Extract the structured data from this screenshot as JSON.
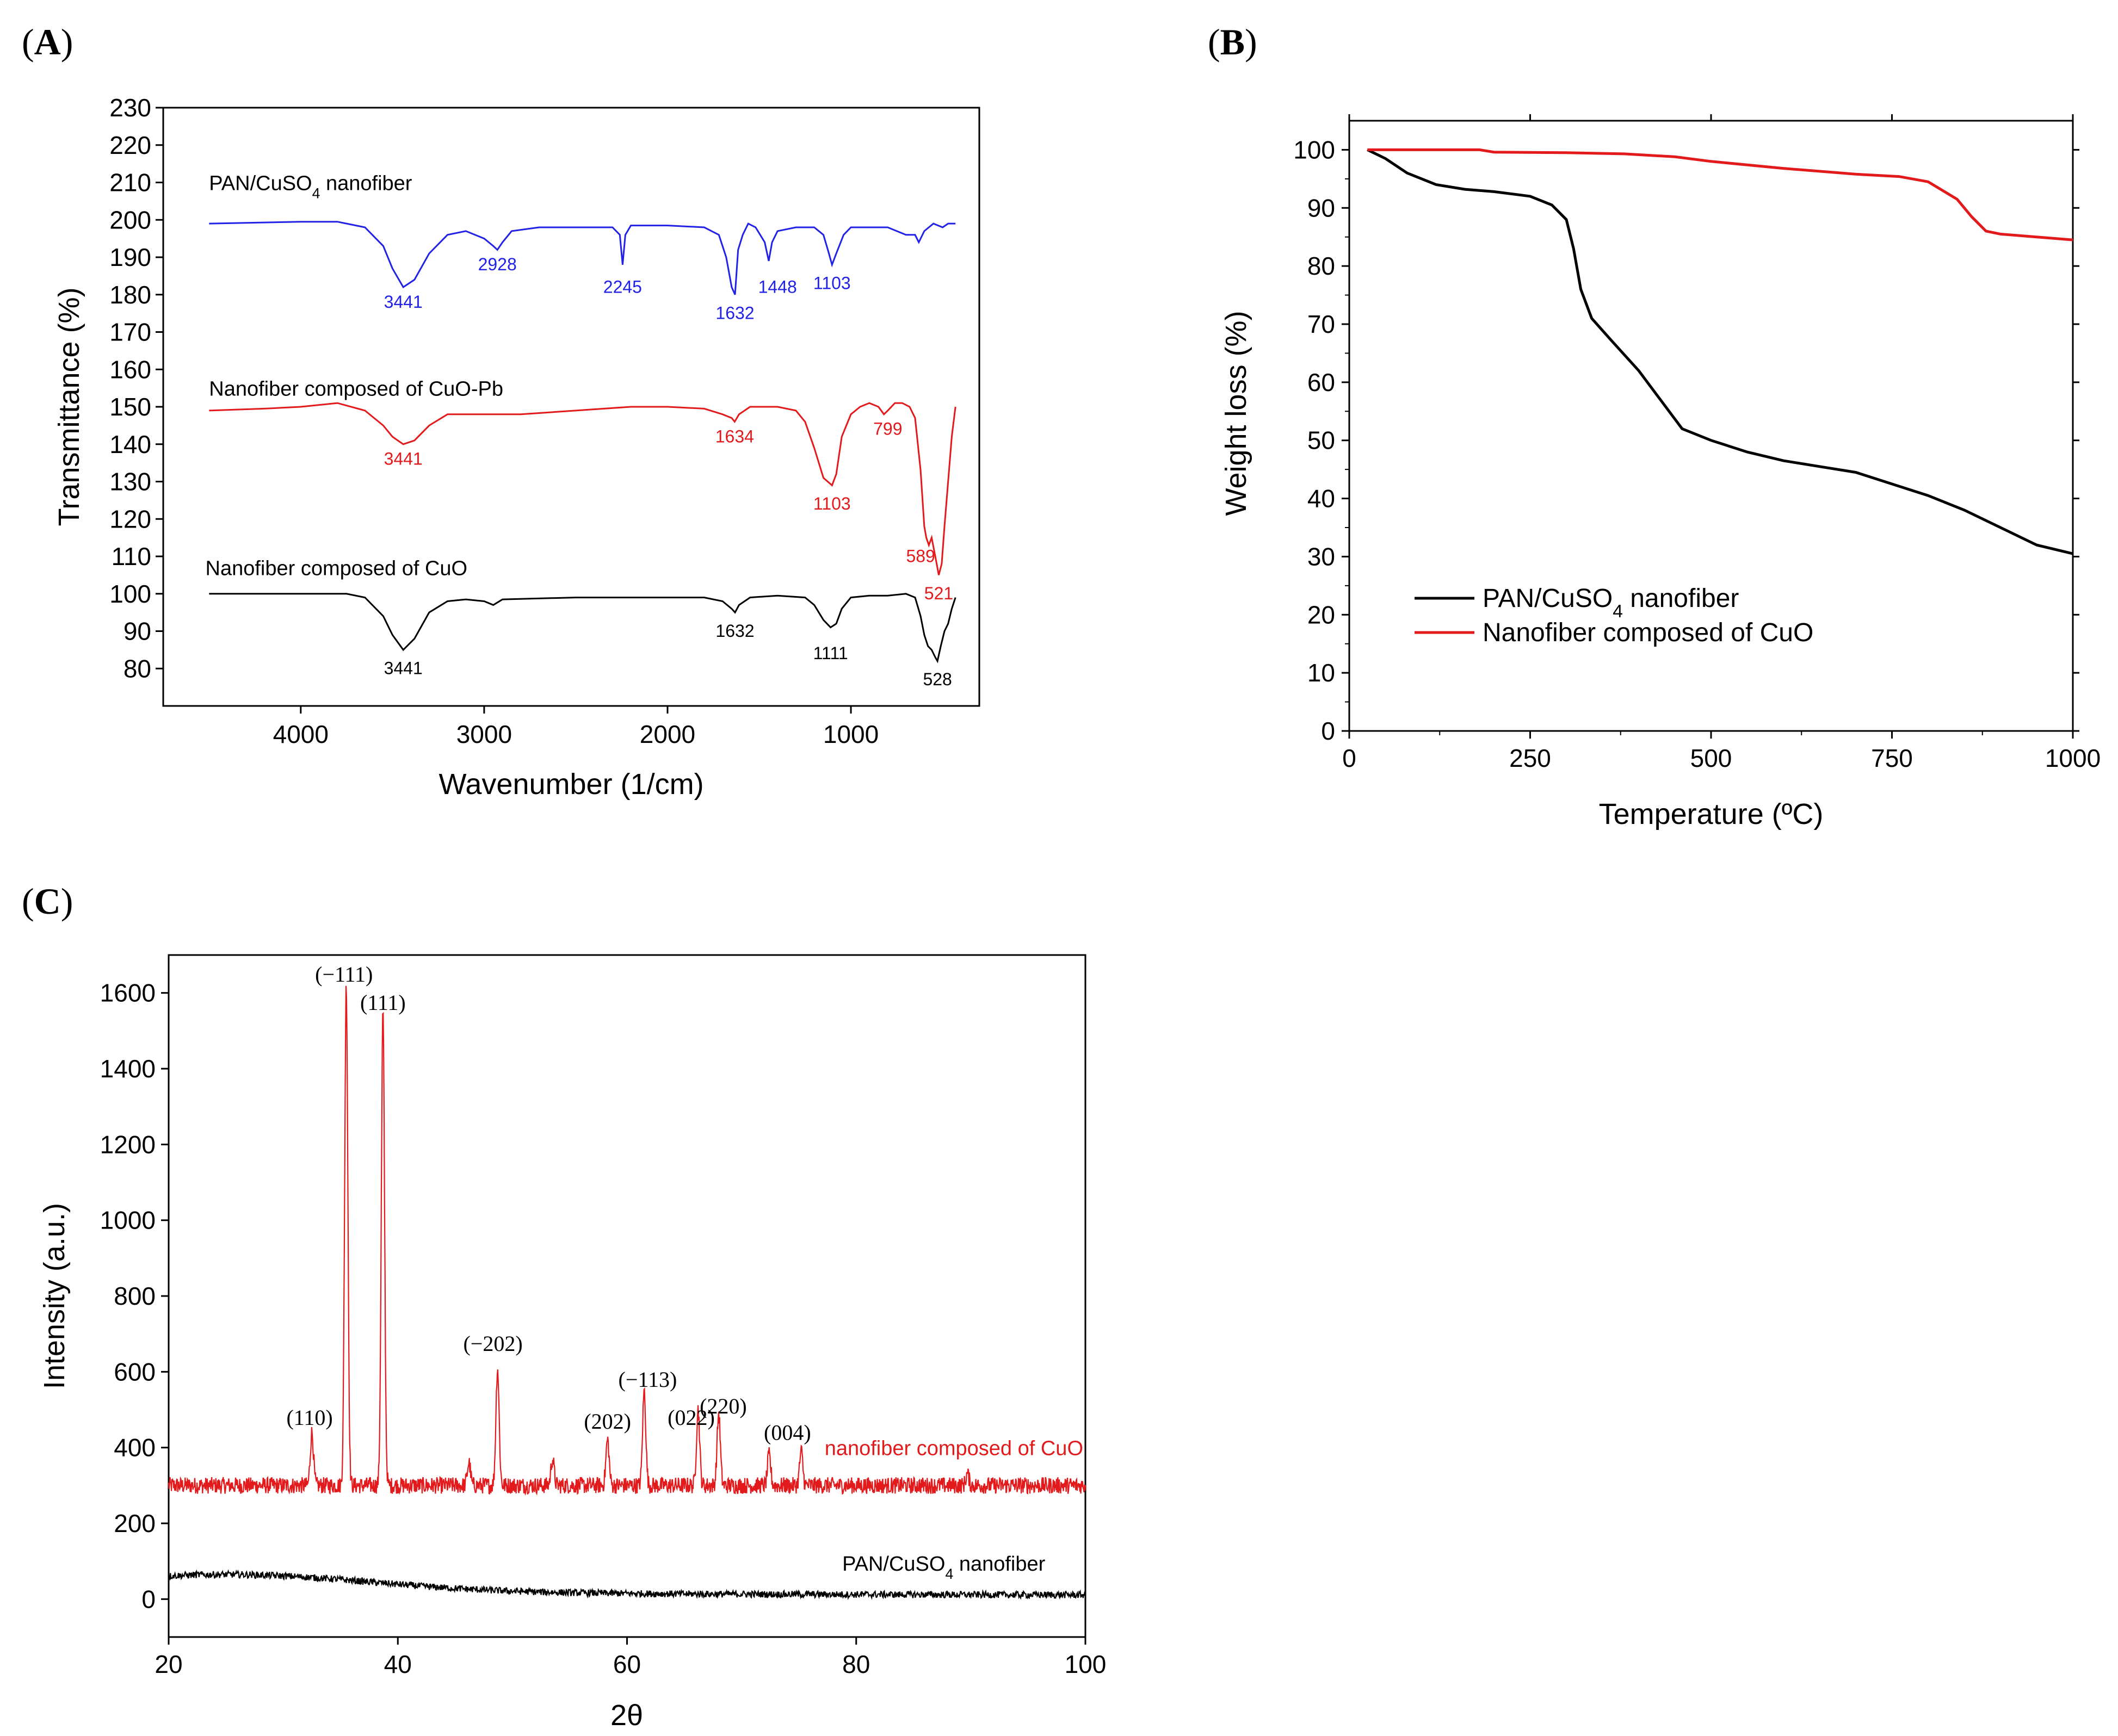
{
  "figure": {
    "panels": {
      "A": "A",
      "B": "B",
      "C": "C"
    }
  },
  "colors": {
    "blue": "#2222e6",
    "red": "#e31a1c",
    "black": "#000000"
  },
  "chart_data": [
    {
      "id": "A",
      "type": "line",
      "title": "",
      "xlabel": "Wavenumber (1/cm)",
      "ylabel": "Transmittance (%)",
      "xlim": [
        4750,
        300
      ],
      "ylim": [
        70,
        230
      ],
      "xticks": [
        4000,
        3000,
        2000,
        1000
      ],
      "yticks": [
        80,
        90,
        100,
        110,
        120,
        130,
        140,
        150,
        160,
        170,
        180,
        190,
        200,
        210,
        220,
        230
      ],
      "series": [
        {
          "name": "PAN/CuSO4 nanofiber",
          "label_main": "PAN/CuSO",
          "label_sub": "4",
          "label_end": " nanofiber",
          "color": "#2222e6",
          "points": [
            [
              4500,
              199
            ],
            [
              4000,
              199.5
            ],
            [
              3800,
              199.5
            ],
            [
              3650,
              198
            ],
            [
              3550,
              193
            ],
            [
              3500,
              187
            ],
            [
              3441,
              182
            ],
            [
              3380,
              184
            ],
            [
              3300,
              191
            ],
            [
              3200,
              196
            ],
            [
              3100,
              197
            ],
            [
              3000,
              195
            ],
            [
              2950,
              193
            ],
            [
              2928,
              192
            ],
            [
              2900,
              194
            ],
            [
              2850,
              197
            ],
            [
              2700,
              198
            ],
            [
              2500,
              198
            ],
            [
              2300,
              198
            ],
            [
              2260,
              196
            ],
            [
              2245,
              188
            ],
            [
              2230,
              196
            ],
            [
              2200,
              198.5
            ],
            [
              2000,
              198.5
            ],
            [
              1800,
              198
            ],
            [
              1720,
              196
            ],
            [
              1680,
              190
            ],
            [
              1650,
              182
            ],
            [
              1632,
              180
            ],
            [
              1615,
              192
            ],
            [
              1590,
              196
            ],
            [
              1560,
              199
            ],
            [
              1520,
              198
            ],
            [
              1470,
              194
            ],
            [
              1448,
              189
            ],
            [
              1430,
              194
            ],
            [
              1400,
              197
            ],
            [
              1300,
              198
            ],
            [
              1200,
              198
            ],
            [
              1150,
              196
            ],
            [
              1120,
              191
            ],
            [
              1103,
              188
            ],
            [
              1080,
              191
            ],
            [
              1040,
              196
            ],
            [
              1000,
              198
            ],
            [
              900,
              198
            ],
            [
              800,
              198
            ],
            [
              700,
              196
            ],
            [
              650,
              196
            ],
            [
              630,
              194
            ],
            [
              600,
              197
            ],
            [
              550,
              199
            ],
            [
              500,
              198
            ],
            [
              470,
              199
            ],
            [
              430,
              199
            ]
          ],
          "annotations": [
            {
              "text": "3441",
              "x": 3441,
              "y": 180
            },
            {
              "text": "2928",
              "x": 2928,
              "y": 190
            },
            {
              "text": "2245",
              "x": 2245,
              "y": 184
            },
            {
              "text": "1632",
              "x": 1632,
              "y": 177
            },
            {
              "text": "1448",
              "x": 1400,
              "y": 184
            },
            {
              "text": "1103",
              "x": 1103,
              "y": 185
            }
          ]
        },
        {
          "name": "Nanofiber composed of CuO-Pb",
          "color": "#e31a1c",
          "points": [
            [
              4500,
              149
            ],
            [
              4200,
              149.5
            ],
            [
              4000,
              150
            ],
            [
              3800,
              151
            ],
            [
              3650,
              149
            ],
            [
              3550,
              145
            ],
            [
              3500,
              142
            ],
            [
              3441,
              140
            ],
            [
              3380,
              141
            ],
            [
              3300,
              145
            ],
            [
              3200,
              148
            ],
            [
              3000,
              148
            ],
            [
              2800,
              148
            ],
            [
              2500,
              149
            ],
            [
              2200,
              150
            ],
            [
              2000,
              150
            ],
            [
              1800,
              149.5
            ],
            [
              1700,
              148
            ],
            [
              1650,
              147
            ],
            [
              1634,
              146
            ],
            [
              1610,
              148
            ],
            [
              1550,
              150
            ],
            [
              1400,
              150
            ],
            [
              1300,
              149
            ],
            [
              1250,
              146
            ],
            [
              1200,
              139
            ],
            [
              1150,
              131
            ],
            [
              1103,
              129
            ],
            [
              1080,
              132
            ],
            [
              1050,
              142
            ],
            [
              1000,
              148
            ],
            [
              950,
              150
            ],
            [
              900,
              151
            ],
            [
              850,
              150
            ],
            [
              820,
              148
            ],
            [
              799,
              149
            ],
            [
              760,
              151
            ],
            [
              720,
              151
            ],
            [
              680,
              150
            ],
            [
              650,
              147
            ],
            [
              620,
              133
            ],
            [
              600,
              118
            ],
            [
              589,
              115
            ],
            [
              575,
              113
            ],
            [
              560,
              115
            ],
            [
              540,
              110
            ],
            [
              521,
              105
            ],
            [
              505,
              108
            ],
            [
              490,
              118
            ],
            [
              470,
              130
            ],
            [
              450,
              142
            ],
            [
              430,
              150
            ]
          ],
          "annotations": [
            {
              "text": "3441",
              "x": 3441,
              "y": 138
            },
            {
              "text": "1634",
              "x": 1634,
              "y": 144
            },
            {
              "text": "799",
              "x": 799,
              "y": 146
            },
            {
              "text": "1103",
              "x": 1103,
              "y": 126
            },
            {
              "text": "589",
              "x": 620,
              "y": 112
            },
            {
              "text": "521",
              "x": 521,
              "y": 102
            }
          ]
        },
        {
          "name": "Nanofiber composed of CuO",
          "color": "#000000",
          "points": [
            [
              4500,
              100
            ],
            [
              4000,
              100
            ],
            [
              3750,
              100
            ],
            [
              3650,
              99
            ],
            [
              3550,
              94
            ],
            [
              3500,
              89
            ],
            [
              3441,
              85
            ],
            [
              3380,
              88
            ],
            [
              3300,
              95
            ],
            [
              3200,
              98
            ],
            [
              3100,
              98.5
            ],
            [
              3000,
              98
            ],
            [
              2950,
              97
            ],
            [
              2900,
              98.5
            ],
            [
              2500,
              99
            ],
            [
              2000,
              99
            ],
            [
              1800,
              99
            ],
            [
              1700,
              98
            ],
            [
              1650,
              96
            ],
            [
              1632,
              95
            ],
            [
              1610,
              97
            ],
            [
              1550,
              99
            ],
            [
              1400,
              99.5
            ],
            [
              1250,
              99
            ],
            [
              1200,
              97
            ],
            [
              1150,
              93
            ],
            [
              1111,
              91
            ],
            [
              1080,
              92
            ],
            [
              1050,
              96
            ],
            [
              1000,
              99
            ],
            [
              900,
              99.5
            ],
            [
              800,
              99.5
            ],
            [
              700,
              100
            ],
            [
              650,
              99
            ],
            [
              620,
              94
            ],
            [
              600,
              89
            ],
            [
              580,
              86
            ],
            [
              560,
              85
            ],
            [
              540,
              83
            ],
            [
              528,
              82
            ],
            [
              510,
              86
            ],
            [
              490,
              90
            ],
            [
              470,
              92
            ],
            [
              450,
              96
            ],
            [
              430,
              99
            ]
          ],
          "annotations": [
            {
              "text": "3441",
              "x": 3441,
              "y": 82
            },
            {
              "text": "1632",
              "x": 1632,
              "y": 92
            },
            {
              "text": "1111",
              "x": 1111,
              "y": 86
            },
            {
              "text": "528",
              "x": 528,
              "y": 79
            }
          ]
        }
      ],
      "series_labels": [
        {
          "text": "Nanofiber composed of CuO-Pb",
          "x": 4500,
          "y": 153
        },
        {
          "text": "Nanofiber composed of CuO",
          "x": 4520,
          "y": 105
        }
      ]
    },
    {
      "id": "B",
      "type": "line",
      "title": "",
      "xlabel": "Temperature (ºC)",
      "ylabel": "Weight loss (%)",
      "xlim": [
        0,
        1000
      ],
      "ylim": [
        0,
        105
      ],
      "xticks": [
        0,
        250,
        500,
        750,
        1000
      ],
      "yticks": [
        0,
        10,
        20,
        30,
        40,
        50,
        60,
        70,
        80,
        90,
        100
      ],
      "legend_position": "bottom-left",
      "series": [
        {
          "name": "PAN/CuSO4 nanofiber",
          "label_main": "PAN/CuSO",
          "label_sub": "4",
          "label_end": " nanofiber",
          "color": "#000000",
          "points": [
            [
              25,
              100
            ],
            [
              50,
              98.5
            ],
            [
              80,
              96
            ],
            [
              120,
              94
            ],
            [
              160,
              93.2
            ],
            [
              200,
              92.8
            ],
            [
              250,
              92
            ],
            [
              280,
              90.5
            ],
            [
              300,
              88
            ],
            [
              310,
              83
            ],
            [
              320,
              76
            ],
            [
              335,
              71
            ],
            [
              360,
              67.5
            ],
            [
              400,
              62
            ],
            [
              430,
              57
            ],
            [
              460,
              52
            ],
            [
              500,
              50
            ],
            [
              550,
              48
            ],
            [
              600,
              46.5
            ],
            [
              650,
              45.5
            ],
            [
              700,
              44.5
            ],
            [
              750,
              42.5
            ],
            [
              800,
              40.5
            ],
            [
              850,
              38
            ],
            [
              900,
              35
            ],
            [
              950,
              32
            ],
            [
              1000,
              30.5
            ]
          ]
        },
        {
          "name": "Nanofiber composed of CuO",
          "color": "#e31a1c",
          "points": [
            [
              25,
              100
            ],
            [
              100,
              100
            ],
            [
              180,
              100
            ],
            [
              200,
              99.6
            ],
            [
              300,
              99.5
            ],
            [
              380,
              99.3
            ],
            [
              450,
              98.8
            ],
            [
              500,
              98
            ],
            [
              600,
              96.8
            ],
            [
              700,
              95.8
            ],
            [
              760,
              95.4
            ],
            [
              800,
              94.5
            ],
            [
              840,
              91.5
            ],
            [
              860,
              88.5
            ],
            [
              880,
              86
            ],
            [
              900,
              85.5
            ],
            [
              950,
              85
            ],
            [
              1000,
              84.5
            ]
          ]
        }
      ]
    },
    {
      "id": "C",
      "type": "line",
      "title": "",
      "xlabel": "2θ",
      "ylabel": "Intensity (a.u.)",
      "xlim": [
        20,
        100
      ],
      "ylim": [
        -100,
        1700
      ],
      "xticks": [
        20,
        40,
        60,
        80,
        100
      ],
      "yticks": [
        0,
        200,
        400,
        600,
        800,
        1000,
        1200,
        1400,
        1600
      ],
      "series": [
        {
          "name": "nanofiber composed of CuO",
          "color": "#e31a1c",
          "baseline": 300,
          "noise": 22,
          "peaks": [
            [
              32.5,
              140
            ],
            [
              35.5,
              1320
            ],
            [
              38.7,
              1250
            ],
            [
              46.2,
              60
            ],
            [
              48.7,
              310
            ],
            [
              53.5,
              70
            ],
            [
              58.3,
              120
            ],
            [
              61.5,
              250
            ],
            [
              66.2,
              200
            ],
            [
              68.0,
              190
            ],
            [
              72.4,
              80
            ],
            [
              75.2,
              90
            ],
            [
              89.7,
              30
            ]
          ],
          "label_text": "nanofiber composed of CuO"
        },
        {
          "name": "PAN/CuSO4 nanofiber",
          "label_main": "PAN/CuSO",
          "label_sub": "4",
          "label_end": " nanofiber",
          "color": "#000000",
          "noise": 9
        }
      ],
      "hkl_labels": [
        {
          "text": "(110)",
          "x": 32.3,
          "y": 460
        },
        {
          "text": "(−111)",
          "x": 35.3,
          "y": 1630
        },
        {
          "text": "(111)",
          "x": 38.7,
          "y": 1555
        },
        {
          "text": "(−202)",
          "x": 48.3,
          "y": 655
        },
        {
          "text": "(202)",
          "x": 58.3,
          "y": 450
        },
        {
          "text": "(−113)",
          "x": 61.8,
          "y": 560
        },
        {
          "text": "(022)",
          "x": 65.6,
          "y": 460
        },
        {
          "text": "(220)",
          "x": 68.4,
          "y": 490
        },
        {
          "text": "(004)",
          "x": 74.0,
          "y": 420
        }
      ]
    }
  ]
}
